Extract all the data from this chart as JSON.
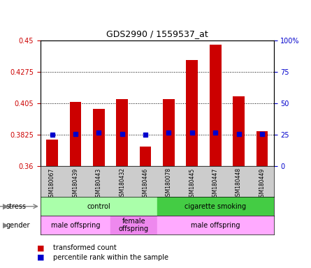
{
  "title": "GDS2990 / 1559537_at",
  "samples": [
    "GSM180067",
    "GSM180439",
    "GSM180443",
    "GSM180432",
    "GSM180446",
    "GSM180078",
    "GSM180445",
    "GSM180447",
    "GSM180448",
    "GSM180449"
  ],
  "bar_values": [
    0.379,
    0.406,
    0.401,
    0.408,
    0.374,
    0.408,
    0.436,
    0.447,
    0.41,
    0.385
  ],
  "percentile_values": [
    0.3825,
    0.383,
    0.384,
    0.383,
    0.3825,
    0.384,
    0.384,
    0.384,
    0.383,
    0.383
  ],
  "ymin": 0.36,
  "ymax": 0.45,
  "yticks": [
    0.36,
    0.3825,
    0.405,
    0.4275,
    0.45
  ],
  "ytick_labels": [
    "0.36",
    "0.3825",
    "0.405",
    "0.4275",
    "0.45"
  ],
  "right_yticks": [
    0,
    25,
    50,
    75,
    100
  ],
  "right_ytick_labels": [
    "0",
    "25",
    "50",
    "75",
    "100%"
  ],
  "bar_color": "#cc0000",
  "percentile_color": "#0000cc",
  "bar_bottom": 0.36,
  "stress_groups": [
    {
      "label": "control",
      "start": 0,
      "end": 5,
      "color": "#aaffaa"
    },
    {
      "label": "cigarette smoking",
      "start": 5,
      "end": 10,
      "color": "#44cc44"
    }
  ],
  "gender_groups": [
    {
      "label": "male offspring",
      "start": 0,
      "end": 3,
      "color": "#ffaaff"
    },
    {
      "label": "female\noffspring",
      "start": 3,
      "end": 5,
      "color": "#ee88ee"
    },
    {
      "label": "male offspring",
      "start": 5,
      "end": 10,
      "color": "#ffaaff"
    }
  ],
  "legend_red_label": "transformed count",
  "legend_blue_label": "percentile rank within the sample",
  "stress_label": "stress",
  "gender_label": "gender",
  "tick_label_rotation": 90,
  "grid_style": "dotted",
  "background_color": "#ffffff",
  "plot_bg": "#ffffff"
}
